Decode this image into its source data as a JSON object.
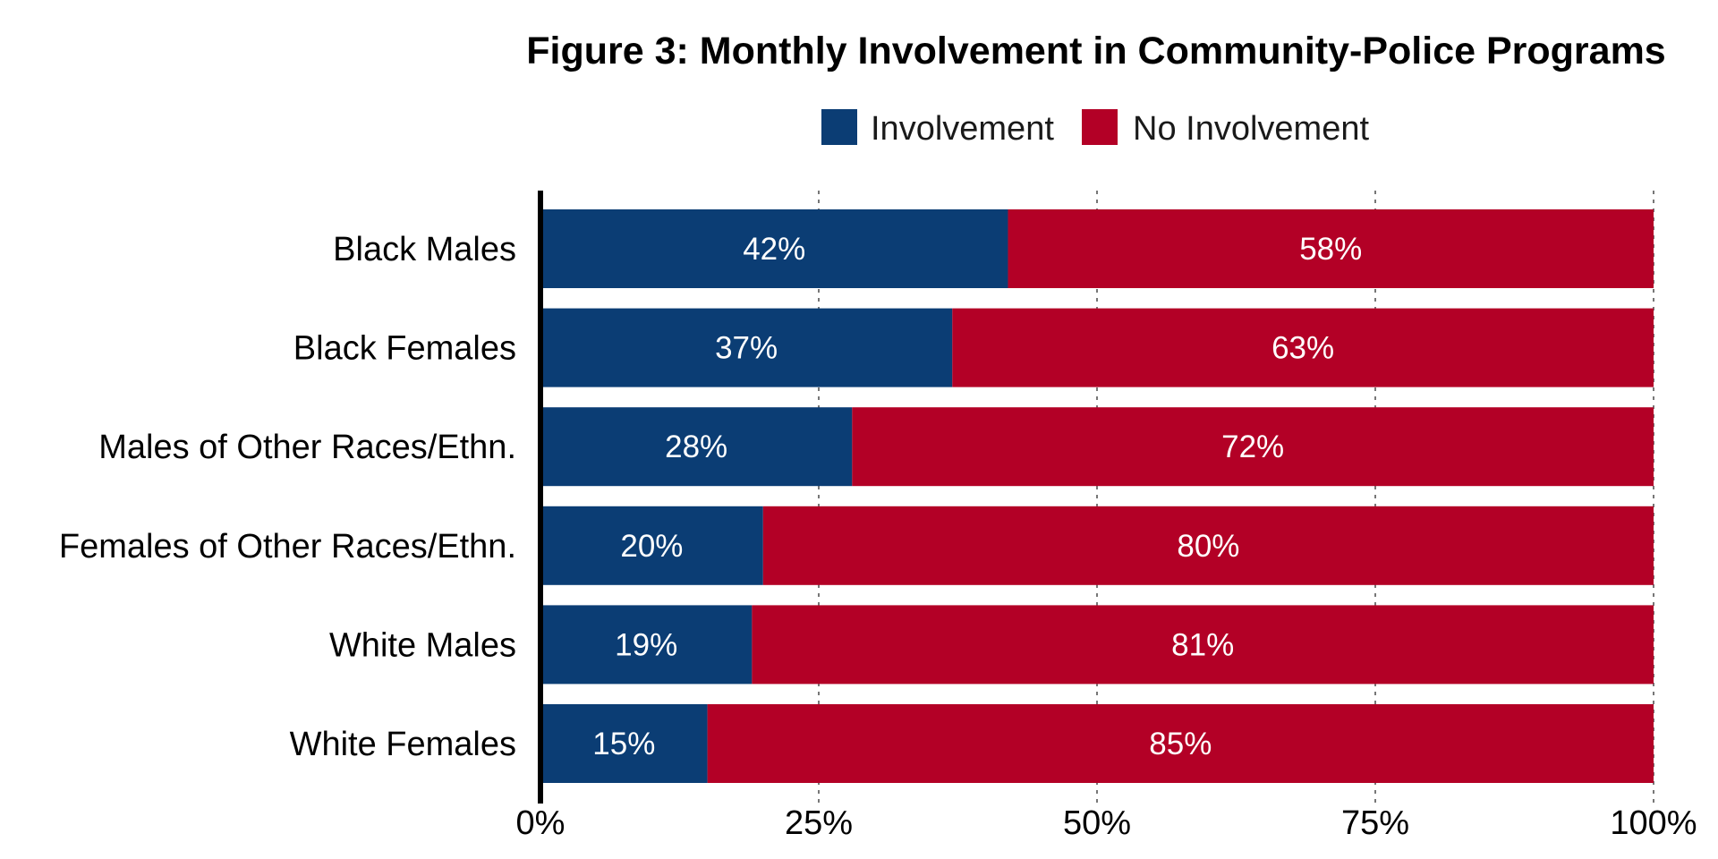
{
  "chart_data": {
    "type": "bar",
    "orientation": "horizontal",
    "stacked": true,
    "title": "Figure 3: Monthly Involvement in Community-Police Programs",
    "xlabel": "",
    "ylabel": "",
    "xlim": [
      0,
      100
    ],
    "x_unit": "%",
    "ticks": [
      0,
      25,
      50,
      75,
      100
    ],
    "tick_labels": [
      "0%",
      "25%",
      "50%",
      "75%",
      "100%"
    ],
    "categories": [
      "Black Males",
      "Black Females",
      "Males of Other Races/Ethn.",
      "Females of Other Races/Ethn.",
      "White Males",
      "White Females"
    ],
    "series": [
      {
        "name": "Involvement",
        "color": "#0b3d74",
        "values": [
          42,
          37,
          28,
          20,
          19,
          15
        ],
        "labels": [
          "42%",
          "37%",
          "28%",
          "20%",
          "19%",
          "15%"
        ]
      },
      {
        "name": "No Involvement",
        "color": "#b30026",
        "values": [
          58,
          63,
          72,
          80,
          81,
          85
        ],
        "labels": [
          "58%",
          "63%",
          "72%",
          "80%",
          "81%",
          "85%"
        ]
      }
    ],
    "grid": "vertical-dashed",
    "legend_position": "top"
  }
}
